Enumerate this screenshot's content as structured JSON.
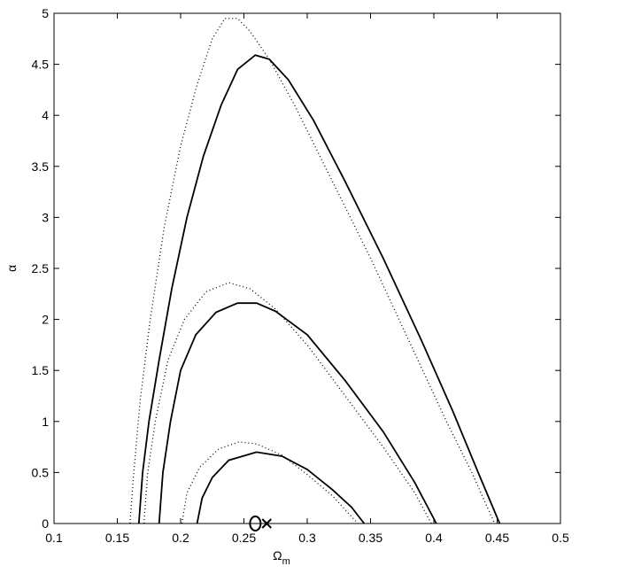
{
  "chart_data": {
    "type": "line",
    "xlabel": "Ω",
    "xlabel_sub": "m",
    "ylabel": "α",
    "xlim": [
      0.1,
      0.5
    ],
    "ylim": [
      0,
      5
    ],
    "xticks": [
      0.1,
      0.15,
      0.2,
      0.25,
      0.3,
      0.35,
      0.4,
      0.45,
      0.5
    ],
    "yticks": [
      0,
      0.5,
      1,
      1.5,
      2,
      2.5,
      3,
      3.5,
      4,
      4.5,
      5
    ],
    "series": [
      {
        "color": "#000000",
        "style": "solid",
        "x": [
          0.167,
          0.17,
          0.175,
          0.183,
          0.193,
          0.205,
          0.218,
          0.232,
          0.245,
          0.259,
          0.27,
          0.285,
          0.305,
          0.33,
          0.36,
          0.39,
          0.415,
          0.435,
          0.452
        ],
        "values": [
          0,
          0.5,
          1.0,
          1.6,
          2.3,
          3.0,
          3.6,
          4.1,
          4.45,
          4.59,
          4.55,
          4.35,
          3.95,
          3.35,
          2.6,
          1.8,
          1.1,
          0.5,
          0
        ]
      },
      {
        "color": "#000000",
        "style": "dotted",
        "x": [
          0.16,
          0.163,
          0.168,
          0.176,
          0.187,
          0.2,
          0.213,
          0.225,
          0.235,
          0.245,
          0.255,
          0.27,
          0.29,
          0.32,
          0.35,
          0.38,
          0.41,
          0.43,
          0.448
        ],
        "values": [
          0,
          0.5,
          1.2,
          2.0,
          2.9,
          3.7,
          4.3,
          4.75,
          4.95,
          4.95,
          4.82,
          4.55,
          4.1,
          3.35,
          2.6,
          1.8,
          1.0,
          0.5,
          0
        ]
      },
      {
        "color": "#000000",
        "style": "solid",
        "x": [
          0.183,
          0.186,
          0.192,
          0.2,
          0.212,
          0.228,
          0.245,
          0.26,
          0.275,
          0.3,
          0.33,
          0.36,
          0.385,
          0.402
        ],
        "values": [
          0,
          0.5,
          1.0,
          1.5,
          1.85,
          2.07,
          2.16,
          2.16,
          2.08,
          1.85,
          1.4,
          0.9,
          0.4,
          0
        ]
      },
      {
        "color": "#000000",
        "style": "dotted",
        "x": [
          0.171,
          0.174,
          0.18,
          0.19,
          0.203,
          0.22,
          0.238,
          0.255,
          0.275,
          0.3,
          0.33,
          0.36,
          0.385,
          0.398
        ],
        "values": [
          0,
          0.5,
          1.0,
          1.6,
          2.0,
          2.27,
          2.36,
          2.3,
          2.1,
          1.75,
          1.25,
          0.75,
          0.3,
          0
        ]
      },
      {
        "color": "#000000",
        "style": "solid",
        "x": [
          0.213,
          0.217,
          0.225,
          0.238,
          0.26,
          0.28,
          0.3,
          0.32,
          0.335,
          0.345
        ],
        "values": [
          0,
          0.25,
          0.45,
          0.62,
          0.7,
          0.66,
          0.53,
          0.33,
          0.16,
          0
        ]
      },
      {
        "color": "#000000",
        "style": "dotted",
        "x": [
          0.201,
          0.205,
          0.215,
          0.23,
          0.246,
          0.26,
          0.28,
          0.3,
          0.32,
          0.34
        ],
        "values": [
          0,
          0.3,
          0.55,
          0.73,
          0.8,
          0.78,
          0.67,
          0.48,
          0.27,
          0
        ]
      }
    ],
    "markers": [
      {
        "x": 0.259,
        "y": 0,
        "symbol": "o"
      },
      {
        "x": 0.268,
        "y": 0,
        "symbol": "x"
      }
    ]
  }
}
